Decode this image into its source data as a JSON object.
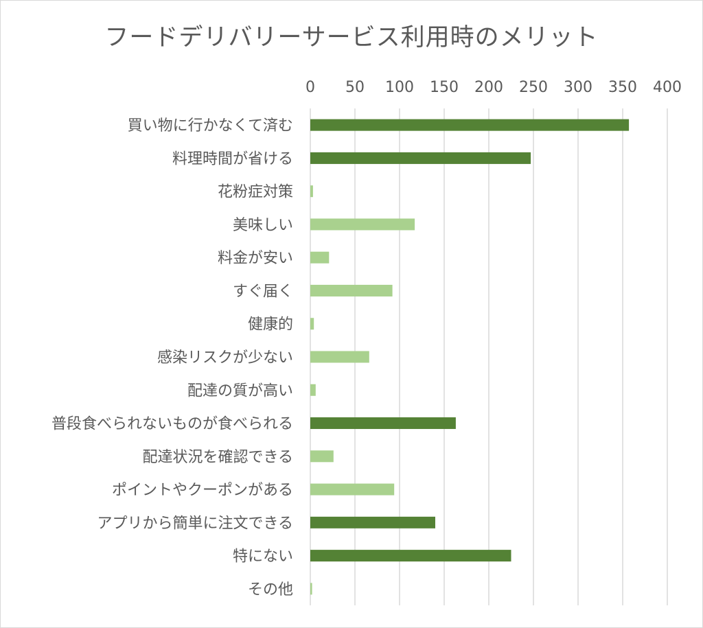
{
  "chart_data": {
    "type": "bar",
    "orientation": "horizontal",
    "title": "フードデリバリーサービス利用時のメリット",
    "xlim": [
      0,
      400
    ],
    "x_ticks": [
      0,
      50,
      100,
      150,
      200,
      250,
      300,
      350,
      400
    ],
    "x_axis_position": "top",
    "grid": true,
    "categories": [
      "買い物に行かなくて済む",
      "料理時間が省ける",
      "花粉症対策",
      "美味しい",
      "料金が安い",
      "すぐ届く",
      "健康的",
      "感染リスクが少ない",
      "配達の質が高い",
      "普段食べられないものが食べられる",
      "配達状況を確認できる",
      "ポイントやクーポンがある",
      "アプリから簡単に注文できる",
      "特にない",
      "その他"
    ],
    "values": [
      357,
      247,
      3,
      117,
      21,
      92,
      4,
      66,
      6,
      163,
      26,
      94,
      140,
      225,
      2
    ],
    "highlight": [
      true,
      true,
      false,
      false,
      false,
      false,
      false,
      false,
      false,
      true,
      false,
      false,
      true,
      true,
      false
    ],
    "colors": {
      "highlight": "#548235",
      "normal": "#a9d18e",
      "grid": "#d9d9d9",
      "text": "#595959"
    }
  }
}
